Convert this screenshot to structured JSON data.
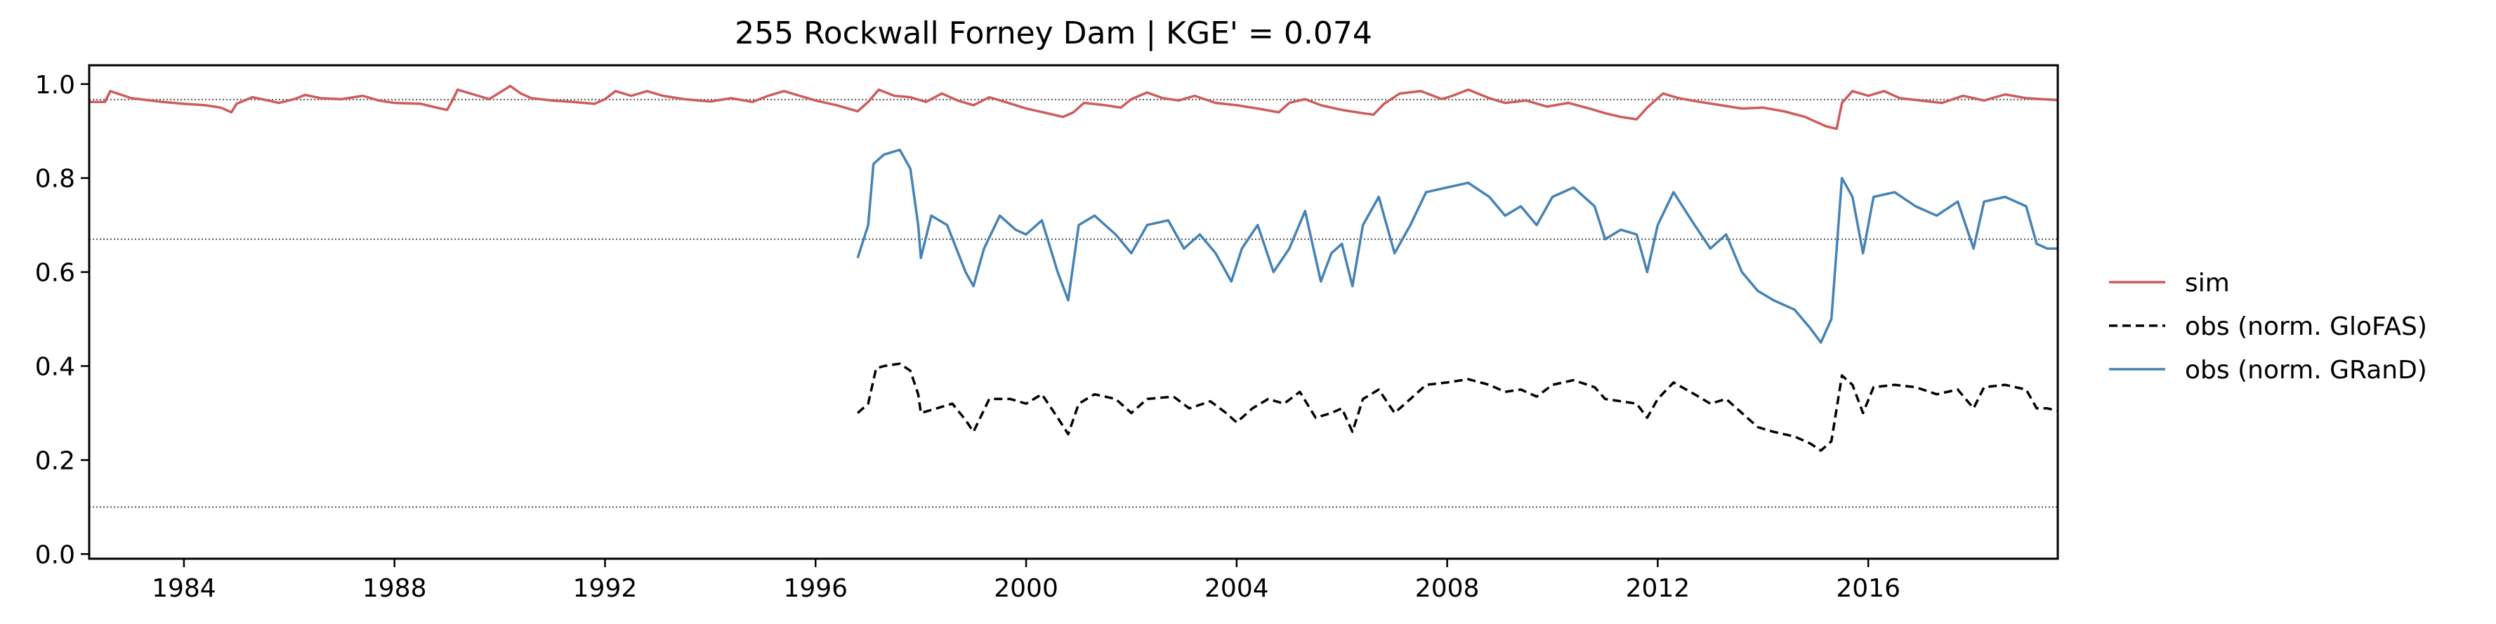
{
  "chart_data": {
    "type": "line",
    "title": "255  Rockwall Forney Dam | KGE' = 0.074",
    "xlabel": "",
    "ylabel": "",
    "xlim": [
      1982.2,
      2019.6
    ],
    "ylim": [
      -0.01,
      1.04
    ],
    "x_ticks": [
      1984,
      1988,
      1992,
      1996,
      2000,
      2004,
      2008,
      2012,
      2016
    ],
    "y_ticks": [
      0.0,
      0.2,
      0.4,
      0.6,
      0.8,
      1.0
    ],
    "y_tick_labels": [
      "0.0",
      "0.2",
      "0.4",
      "0.6",
      "0.8",
      "1.0"
    ],
    "grid": false,
    "legend_position": "right, outside plot",
    "reference_lines": [
      0.967,
      0.67,
      0.1
    ],
    "reference_line_color": "#555555",
    "legend": [
      {
        "label": "sim",
        "color": "#cd5c5c",
        "dash": "solid"
      },
      {
        "label": "obs (norm. GloFAS)",
        "color": "#000000",
        "dash": "dashed"
      },
      {
        "label": "obs (norm. GRanD)",
        "color": "#4682b4",
        "dash": "solid"
      }
    ],
    "series": [
      {
        "name": "sim",
        "color": "#cd5c5c",
        "dash": "solid",
        "points": [
          [
            1982.2,
            0.962
          ],
          [
            1982.5,
            0.962
          ],
          [
            1982.6,
            0.985
          ],
          [
            1983.0,
            0.97
          ],
          [
            1983.6,
            0.962
          ],
          [
            1984.0,
            0.958
          ],
          [
            1984.4,
            0.955
          ],
          [
            1984.7,
            0.95
          ],
          [
            1984.9,
            0.94
          ],
          [
            1985.0,
            0.958
          ],
          [
            1985.3,
            0.972
          ],
          [
            1985.6,
            0.965
          ],
          [
            1985.8,
            0.96
          ],
          [
            1986.1,
            0.968
          ],
          [
            1986.3,
            0.977
          ],
          [
            1986.6,
            0.97
          ],
          [
            1987.0,
            0.968
          ],
          [
            1987.4,
            0.975
          ],
          [
            1987.7,
            0.965
          ],
          [
            1988.0,
            0.96
          ],
          [
            1988.5,
            0.958
          ],
          [
            1988.8,
            0.95
          ],
          [
            1989.0,
            0.945
          ],
          [
            1989.1,
            0.965
          ],
          [
            1989.2,
            0.988
          ],
          [
            1989.5,
            0.978
          ],
          [
            1989.8,
            0.968
          ],
          [
            1990.0,
            0.982
          ],
          [
            1990.2,
            0.996
          ],
          [
            1990.4,
            0.98
          ],
          [
            1990.6,
            0.97
          ],
          [
            1991.0,
            0.965
          ],
          [
            1991.4,
            0.962
          ],
          [
            1991.8,
            0.958
          ],
          [
            1992.0,
            0.968
          ],
          [
            1992.2,
            0.985
          ],
          [
            1992.5,
            0.975
          ],
          [
            1992.8,
            0.985
          ],
          [
            1993.1,
            0.975
          ],
          [
            1993.5,
            0.968
          ],
          [
            1994.0,
            0.963
          ],
          [
            1994.4,
            0.97
          ],
          [
            1994.8,
            0.962
          ],
          [
            1995.1,
            0.975
          ],
          [
            1995.4,
            0.985
          ],
          [
            1995.7,
            0.975
          ],
          [
            1996.0,
            0.965
          ],
          [
            1996.4,
            0.955
          ],
          [
            1996.8,
            0.942
          ],
          [
            1997.0,
            0.962
          ],
          [
            1997.2,
            0.988
          ],
          [
            1997.5,
            0.975
          ],
          [
            1997.8,
            0.972
          ],
          [
            1998.1,
            0.962
          ],
          [
            1998.4,
            0.98
          ],
          [
            1998.7,
            0.965
          ],
          [
            1999.0,
            0.955
          ],
          [
            1999.3,
            0.972
          ],
          [
            1999.6,
            0.962
          ],
          [
            2000.0,
            0.948
          ],
          [
            2000.4,
            0.938
          ],
          [
            2000.7,
            0.93
          ],
          [
            2000.9,
            0.94
          ],
          [
            2001.1,
            0.96
          ],
          [
            2001.5,
            0.955
          ],
          [
            2001.8,
            0.95
          ],
          [
            2002.0,
            0.968
          ],
          [
            2002.3,
            0.982
          ],
          [
            2002.6,
            0.97
          ],
          [
            2002.9,
            0.965
          ],
          [
            2003.2,
            0.975
          ],
          [
            2003.6,
            0.96
          ],
          [
            2004.0,
            0.955
          ],
          [
            2004.4,
            0.948
          ],
          [
            2004.8,
            0.94
          ],
          [
            2005.0,
            0.96
          ],
          [
            2005.3,
            0.968
          ],
          [
            2005.6,
            0.955
          ],
          [
            2006.0,
            0.945
          ],
          [
            2006.4,
            0.938
          ],
          [
            2006.6,
            0.935
          ],
          [
            2006.8,
            0.958
          ],
          [
            2007.1,
            0.98
          ],
          [
            2007.5,
            0.985
          ],
          [
            2007.9,
            0.968
          ],
          [
            2008.1,
            0.975
          ],
          [
            2008.4,
            0.988
          ],
          [
            2008.8,
            0.97
          ],
          [
            2009.1,
            0.96
          ],
          [
            2009.5,
            0.965
          ],
          [
            2009.9,
            0.952
          ],
          [
            2010.3,
            0.96
          ],
          [
            2010.7,
            0.948
          ],
          [
            2011.0,
            0.938
          ],
          [
            2011.3,
            0.93
          ],
          [
            2011.6,
            0.925
          ],
          [
            2011.8,
            0.95
          ],
          [
            2012.1,
            0.98
          ],
          [
            2012.4,
            0.97
          ],
          [
            2012.8,
            0.962
          ],
          [
            2013.2,
            0.955
          ],
          [
            2013.6,
            0.948
          ],
          [
            2014.0,
            0.95
          ],
          [
            2014.4,
            0.942
          ],
          [
            2014.8,
            0.93
          ],
          [
            2015.0,
            0.92
          ],
          [
            2015.2,
            0.91
          ],
          [
            2015.4,
            0.905
          ],
          [
            2015.5,
            0.96
          ],
          [
            2015.7,
            0.985
          ],
          [
            2016.0,
            0.975
          ],
          [
            2016.3,
            0.985
          ],
          [
            2016.6,
            0.97
          ],
          [
            2017.0,
            0.965
          ],
          [
            2017.4,
            0.96
          ],
          [
            2017.8,
            0.975
          ],
          [
            2018.2,
            0.965
          ],
          [
            2018.6,
            0.978
          ],
          [
            2019.0,
            0.97
          ],
          [
            2019.3,
            0.968
          ],
          [
            2019.6,
            0.966
          ]
        ]
      },
      {
        "name": "obs (norm. GloFAS)",
        "color": "#000000",
        "dash": "dashed",
        "points": [
          [
            1996.8,
            0.3
          ],
          [
            1997.0,
            0.32
          ],
          [
            1997.15,
            0.395
          ],
          [
            1997.3,
            0.4
          ],
          [
            1997.6,
            0.405
          ],
          [
            1997.8,
            0.39
          ],
          [
            1997.95,
            0.34
          ],
          [
            1998.0,
            0.3
          ],
          [
            1998.3,
            0.31
          ],
          [
            1998.6,
            0.32
          ],
          [
            1998.85,
            0.285
          ],
          [
            1999.0,
            0.26
          ],
          [
            1999.3,
            0.33
          ],
          [
            1999.7,
            0.33
          ],
          [
            2000.0,
            0.32
          ],
          [
            2000.3,
            0.34
          ],
          [
            2000.6,
            0.29
          ],
          [
            2000.8,
            0.255
          ],
          [
            2001.0,
            0.32
          ],
          [
            2001.3,
            0.34
          ],
          [
            2001.7,
            0.33
          ],
          [
            2002.0,
            0.3
          ],
          [
            2002.3,
            0.33
          ],
          [
            2002.8,
            0.335
          ],
          [
            2003.1,
            0.31
          ],
          [
            2003.5,
            0.325
          ],
          [
            2003.8,
            0.3
          ],
          [
            2004.0,
            0.28
          ],
          [
            2004.3,
            0.31
          ],
          [
            2004.6,
            0.33
          ],
          [
            2004.9,
            0.32
          ],
          [
            2005.2,
            0.345
          ],
          [
            2005.5,
            0.29
          ],
          [
            2005.8,
            0.3
          ],
          [
            2006.0,
            0.31
          ],
          [
            2006.2,
            0.26
          ],
          [
            2006.4,
            0.33
          ],
          [
            2006.7,
            0.35
          ],
          [
            2007.0,
            0.3
          ],
          [
            2007.3,
            0.33
          ],
          [
            2007.6,
            0.36
          ],
          [
            2008.0,
            0.365
          ],
          [
            2008.4,
            0.372
          ],
          [
            2008.8,
            0.36
          ],
          [
            2009.1,
            0.345
          ],
          [
            2009.4,
            0.35
          ],
          [
            2009.7,
            0.335
          ],
          [
            2010.0,
            0.36
          ],
          [
            2010.4,
            0.37
          ],
          [
            2010.8,
            0.355
          ],
          [
            2011.0,
            0.33
          ],
          [
            2011.3,
            0.325
          ],
          [
            2011.6,
            0.32
          ],
          [
            2011.8,
            0.29
          ],
          [
            2012.0,
            0.33
          ],
          [
            2012.3,
            0.365
          ],
          [
            2012.7,
            0.34
          ],
          [
            2013.0,
            0.32
          ],
          [
            2013.3,
            0.33
          ],
          [
            2013.6,
            0.3
          ],
          [
            2013.9,
            0.27
          ],
          [
            2014.2,
            0.26
          ],
          [
            2014.6,
            0.25
          ],
          [
            2014.9,
            0.235
          ],
          [
            2015.1,
            0.22
          ],
          [
            2015.3,
            0.24
          ],
          [
            2015.5,
            0.38
          ],
          [
            2015.7,
            0.36
          ],
          [
            2015.9,
            0.3
          ],
          [
            2016.1,
            0.355
          ],
          [
            2016.5,
            0.36
          ],
          [
            2016.9,
            0.355
          ],
          [
            2017.3,
            0.34
          ],
          [
            2017.7,
            0.35
          ],
          [
            2018.0,
            0.31
          ],
          [
            2018.2,
            0.355
          ],
          [
            2018.6,
            0.36
          ],
          [
            2019.0,
            0.35
          ],
          [
            2019.2,
            0.31
          ],
          [
            2019.4,
            0.31
          ],
          [
            2019.6,
            0.305
          ]
        ]
      },
      {
        "name": "obs (norm. GRanD)",
        "color": "#4682b4",
        "dash": "solid",
        "points": [
          [
            1996.8,
            0.63
          ],
          [
            1997.0,
            0.7
          ],
          [
            1997.1,
            0.83
          ],
          [
            1997.3,
            0.85
          ],
          [
            1997.6,
            0.86
          ],
          [
            1997.8,
            0.82
          ],
          [
            1997.95,
            0.7
          ],
          [
            1998.0,
            0.63
          ],
          [
            1998.2,
            0.72
          ],
          [
            1998.5,
            0.7
          ],
          [
            1998.85,
            0.6
          ],
          [
            1999.0,
            0.57
          ],
          [
            1999.2,
            0.65
          ],
          [
            1999.5,
            0.72
          ],
          [
            1999.8,
            0.69
          ],
          [
            2000.0,
            0.68
          ],
          [
            2000.3,
            0.71
          ],
          [
            2000.6,
            0.6
          ],
          [
            2000.8,
            0.54
          ],
          [
            2001.0,
            0.7
          ],
          [
            2001.3,
            0.72
          ],
          [
            2001.7,
            0.68
          ],
          [
            2002.0,
            0.64
          ],
          [
            2002.3,
            0.7
          ],
          [
            2002.7,
            0.71
          ],
          [
            2003.0,
            0.65
          ],
          [
            2003.3,
            0.68
          ],
          [
            2003.6,
            0.64
          ],
          [
            2003.9,
            0.58
          ],
          [
            2004.1,
            0.65
          ],
          [
            2004.4,
            0.7
          ],
          [
            2004.7,
            0.6
          ],
          [
            2005.0,
            0.65
          ],
          [
            2005.3,
            0.73
          ],
          [
            2005.6,
            0.58
          ],
          [
            2005.8,
            0.64
          ],
          [
            2006.0,
            0.66
          ],
          [
            2006.2,
            0.57
          ],
          [
            2006.4,
            0.7
          ],
          [
            2006.7,
            0.76
          ],
          [
            2007.0,
            0.64
          ],
          [
            2007.3,
            0.7
          ],
          [
            2007.6,
            0.77
          ],
          [
            2008.0,
            0.78
          ],
          [
            2008.4,
            0.79
          ],
          [
            2008.8,
            0.76
          ],
          [
            2009.1,
            0.72
          ],
          [
            2009.4,
            0.74
          ],
          [
            2009.7,
            0.7
          ],
          [
            2010.0,
            0.76
          ],
          [
            2010.4,
            0.78
          ],
          [
            2010.8,
            0.74
          ],
          [
            2011.0,
            0.67
          ],
          [
            2011.3,
            0.69
          ],
          [
            2011.6,
            0.68
          ],
          [
            2011.8,
            0.6
          ],
          [
            2012.0,
            0.7
          ],
          [
            2012.3,
            0.77
          ],
          [
            2012.7,
            0.7
          ],
          [
            2013.0,
            0.65
          ],
          [
            2013.3,
            0.68
          ],
          [
            2013.6,
            0.6
          ],
          [
            2013.9,
            0.56
          ],
          [
            2014.2,
            0.54
          ],
          [
            2014.6,
            0.52
          ],
          [
            2014.9,
            0.48
          ],
          [
            2015.1,
            0.45
          ],
          [
            2015.3,
            0.5
          ],
          [
            2015.5,
            0.8
          ],
          [
            2015.7,
            0.76
          ],
          [
            2015.9,
            0.64
          ],
          [
            2016.1,
            0.76
          ],
          [
            2016.5,
            0.77
          ],
          [
            2016.9,
            0.74
          ],
          [
            2017.3,
            0.72
          ],
          [
            2017.7,
            0.75
          ],
          [
            2018.0,
            0.65
          ],
          [
            2018.2,
            0.75
          ],
          [
            2018.6,
            0.76
          ],
          [
            2019.0,
            0.74
          ],
          [
            2019.2,
            0.66
          ],
          [
            2019.4,
            0.65
          ],
          [
            2019.6,
            0.65
          ]
        ]
      }
    ]
  }
}
